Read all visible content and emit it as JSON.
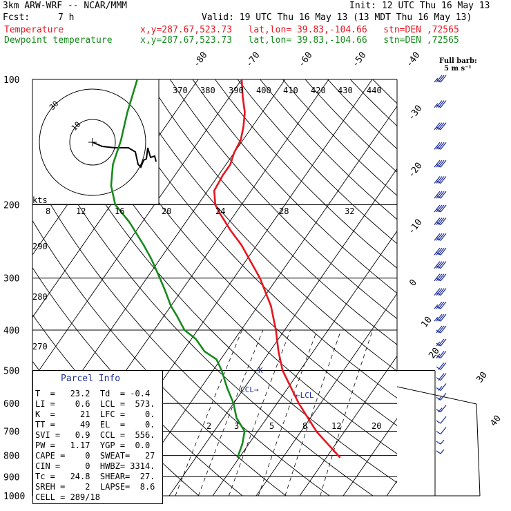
{
  "header": {
    "model": "3km ARW-WRF -- NCAR/MMM",
    "init": "Init: 12 UTC Thu 16 May 13",
    "fcst_label": "Fcst:",
    "fcst_value": "7 h",
    "valid": "Valid: 19 UTC Thu 16 May 13 (13 MDT Thu 16 May 13)",
    "temp_label": "Temperature",
    "temp_loc": "x,y=287.67,523.73   lat,lon= 39.83,-104.66   stn=DEN ,72565",
    "dew_label": "Dewpoint temperature",
    "dew_loc": "x,y=287.67,523.73   lat,lon= 39.83,-104.66   stn=DEN ,72565",
    "barb_note_1": "Full barb:",
    "barb_note_2": "5 m s⁻¹"
  },
  "colors": {
    "temperature": "#e8141e",
    "dewpoint": "#168a1c",
    "parcel": "#1a2a9e",
    "grid": "#000000"
  },
  "chart_data": {
    "type": "line",
    "chart_kind": "skew-t log-p sounding",
    "y_axis": {
      "label": "",
      "scale": "log",
      "ticks": [
        100,
        200,
        300,
        400,
        500,
        600,
        700,
        800,
        900,
        1000
      ]
    },
    "isotherm_labels": [
      "-80",
      "-70",
      "-60",
      "-50",
      "-40",
      "-30",
      "-20",
      "-10",
      "0",
      "10",
      "20",
      "30",
      "40"
    ],
    "dry_adiabat_labels": [
      "270",
      "280",
      "290",
      "370",
      "380",
      "390",
      "400",
      "410",
      "420",
      "430",
      "440"
    ],
    "mixing_ratio_labels": [
      "2",
      "3",
      "5",
      "8",
      "12",
      "20"
    ],
    "hodograph": {
      "units": "kts",
      "ring_labels": [
        "10",
        "30"
      ],
      "speed_ticks": [
        "8",
        "12",
        "16",
        "20",
        "24",
        "28",
        "32"
      ]
    },
    "level_markers": [
      "CCL",
      "LCL",
      "K"
    ],
    "series": [
      {
        "name": "Temperature",
        "color": "#e8141e",
        "points": [
          [
            810,
            23.2
          ],
          [
            700,
            13.5
          ],
          [
            600,
            5
          ],
          [
            500,
            -4
          ],
          [
            450,
            -8
          ],
          [
            400,
            -12
          ],
          [
            350,
            -17
          ],
          [
            300,
            -24
          ],
          [
            270,
            -29.5
          ],
          [
            250,
            -33.5
          ],
          [
            230,
            -38.5
          ],
          [
            210,
            -43.5
          ],
          [
            200,
            -46
          ],
          [
            185,
            -48.5
          ],
          [
            170,
            -49
          ],
          [
            160,
            -49
          ],
          [
            150,
            -50
          ],
          [
            140,
            -50.5
          ],
          [
            130,
            -52
          ],
          [
            120,
            -54
          ],
          [
            110,
            -57
          ],
          [
            100,
            -60
          ]
        ]
      },
      {
        "name": "Dewpoint temperature",
        "color": "#168a1c",
        "points": [
          [
            810,
            -0.4
          ],
          [
            750,
            -1.5
          ],
          [
            700,
            -3
          ],
          [
            650,
            -7
          ],
          [
            600,
            -10
          ],
          [
            550,
            -14
          ],
          [
            500,
            -18
          ],
          [
            470,
            -21
          ],
          [
            450,
            -25
          ],
          [
            420,
            -29
          ],
          [
            400,
            -33
          ],
          [
            370,
            -37
          ],
          [
            350,
            -40
          ],
          [
            320,
            -44
          ],
          [
            300,
            -47
          ],
          [
            270,
            -52
          ],
          [
            250,
            -56
          ],
          [
            220,
            -63
          ],
          [
            200,
            -69
          ],
          [
            180,
            -73
          ],
          [
            160,
            -76
          ],
          [
            140,
            -78
          ],
          [
            120,
            -81
          ],
          [
            100,
            -84
          ]
        ]
      }
    ],
    "wind_barbs": [
      {
        "p": 100,
        "spd": 35
      },
      {
        "p": 115,
        "spd": 35
      },
      {
        "p": 130,
        "spd": 40
      },
      {
        "p": 145,
        "spd": 40
      },
      {
        "p": 160,
        "spd": 40
      },
      {
        "p": 175,
        "spd": 40
      },
      {
        "p": 190,
        "spd": 40
      },
      {
        "p": 205,
        "spd": 40
      },
      {
        "p": 220,
        "spd": 40
      },
      {
        "p": 240,
        "spd": 40
      },
      {
        "p": 260,
        "spd": 40
      },
      {
        "p": 280,
        "spd": 40
      },
      {
        "p": 300,
        "spd": 40
      },
      {
        "p": 325,
        "spd": 40
      },
      {
        "p": 350,
        "spd": 35
      },
      {
        "p": 375,
        "spd": 35
      },
      {
        "p": 400,
        "spd": 30
      },
      {
        "p": 430,
        "spd": 25
      },
      {
        "p": 460,
        "spd": 25
      },
      {
        "p": 490,
        "spd": 20
      },
      {
        "p": 520,
        "spd": 20
      },
      {
        "p": 550,
        "spd": 15
      },
      {
        "p": 580,
        "spd": 15
      },
      {
        "p": 620,
        "spd": 15
      },
      {
        "p": 660,
        "spd": 10
      },
      {
        "p": 700,
        "spd": 10
      },
      {
        "p": 740,
        "spd": 5
      },
      {
        "p": 780,
        "spd": 5
      }
    ]
  },
  "parcel_info": {
    "title": "Parcel Info",
    "rows": [
      "T  =   23.2  Td  = -0.4",
      "LI =    0.6  LCL =  573.",
      "K  =     21  LFC =    0.",
      "TT =     49  EL  =    0.",
      "SVI =   0.9  CCL =  556.",
      "PW =   1.17  YGP =  0.0",
      "CAPE =    0  SWEAT=   27",
      "CIN =     0  HWBZ= 3314.",
      "Tc =   24.8  SHEAR=  27.",
      "SREH =    2  LAPSE=  8.6",
      "CELL = 289/18"
    ]
  }
}
